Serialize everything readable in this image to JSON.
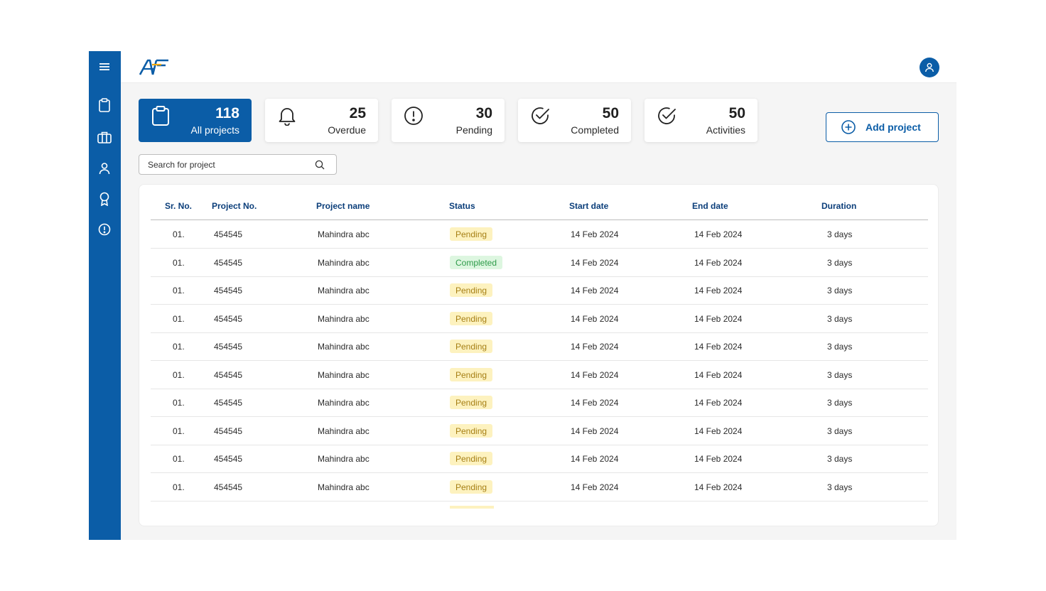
{
  "app": {
    "logo_text": "AF"
  },
  "sidebar": {
    "items": [
      {
        "name": "menu-icon"
      },
      {
        "name": "clipboard-icon"
      },
      {
        "name": "briefcase-icon"
      },
      {
        "name": "user-icon"
      },
      {
        "name": "award-icon"
      },
      {
        "name": "alert-circle-icon"
      }
    ]
  },
  "stats": [
    {
      "count": "118",
      "label": "All projects",
      "icon": "clipboard-icon",
      "active": true
    },
    {
      "count": "25",
      "label": "Overdue",
      "icon": "bell-icon",
      "active": false
    },
    {
      "count": "30",
      "label": "Pending",
      "icon": "alert-circle-icon",
      "active": false
    },
    {
      "count": "50",
      "label": "Completed",
      "icon": "check-circle-icon",
      "active": false
    },
    {
      "count": "50",
      "label": "Activities",
      "icon": "check-circle-icon",
      "active": false
    }
  ],
  "add_project": {
    "label": "Add project"
  },
  "search": {
    "placeholder": "Search for project"
  },
  "table": {
    "headers": [
      "Sr. No.",
      "Project No.",
      "Project name",
      "Status",
      "Start date",
      "End date",
      "Duration"
    ],
    "rows": [
      {
        "sr": "01.",
        "project_no": "454545",
        "name": "Mahindra abc",
        "status": "Pending",
        "start": "14 Feb 2024",
        "end": "14 Feb 2024",
        "duration": "3 days"
      },
      {
        "sr": "01.",
        "project_no": "454545",
        "name": "Mahindra abc",
        "status": "Completed",
        "start": "14 Feb 2024",
        "end": "14 Feb 2024",
        "duration": "3 days"
      },
      {
        "sr": "01.",
        "project_no": "454545",
        "name": "Mahindra abc",
        "status": "Pending",
        "start": "14 Feb 2024",
        "end": "14 Feb 2024",
        "duration": "3 days"
      },
      {
        "sr": "01.",
        "project_no": "454545",
        "name": "Mahindra abc",
        "status": "Pending",
        "start": "14 Feb 2024",
        "end": "14 Feb 2024",
        "duration": "3 days"
      },
      {
        "sr": "01.",
        "project_no": "454545",
        "name": "Mahindra abc",
        "status": "Pending",
        "start": "14 Feb 2024",
        "end": "14 Feb 2024",
        "duration": "3 days"
      },
      {
        "sr": "01.",
        "project_no": "454545",
        "name": "Mahindra abc",
        "status": "Pending",
        "start": "14 Feb 2024",
        "end": "14 Feb 2024",
        "duration": "3 days"
      },
      {
        "sr": "01.",
        "project_no": "454545",
        "name": "Mahindra abc",
        "status": "Pending",
        "start": "14 Feb 2024",
        "end": "14 Feb 2024",
        "duration": "3 days"
      },
      {
        "sr": "01.",
        "project_no": "454545",
        "name": "Mahindra abc",
        "status": "Pending",
        "start": "14 Feb 2024",
        "end": "14 Feb 2024",
        "duration": "3 days"
      },
      {
        "sr": "01.",
        "project_no": "454545",
        "name": "Mahindra abc",
        "status": "Pending",
        "start": "14 Feb 2024",
        "end": "14 Feb 2024",
        "duration": "3 days"
      },
      {
        "sr": "01.",
        "project_no": "454545",
        "name": "Mahindra abc",
        "status": "Pending",
        "start": "14 Feb 2024",
        "end": "14 Feb 2024",
        "duration": "3 days"
      }
    ]
  },
  "colors": {
    "brand": "#0b5da7",
    "header_text": "#0b3e7a",
    "pending_bg": "#fdf2bf",
    "pending_text": "#a67f14",
    "completed_bg": "#ddf6e0",
    "completed_text": "#2e9b49"
  }
}
